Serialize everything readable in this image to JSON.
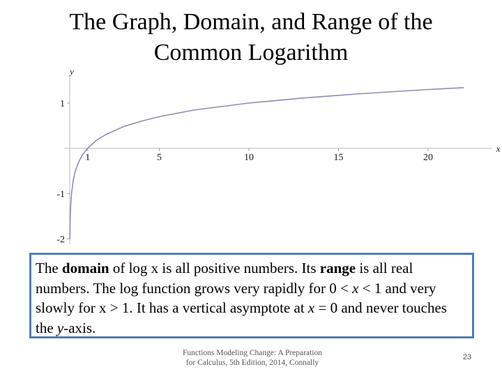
{
  "slide": {
    "title_line1": "The Graph, Domain, and Range of the",
    "title_line2": "Common Logarithm",
    "text": {
      "p1": "The ",
      "p2": "domain",
      "p3": " of log x is all positive numbers.  Its ",
      "p4": "range",
      "p5": " is all real numbers. The log function grows very rapidly for 0 < ",
      "p6": "x",
      "p7": " < 1 and very slowly for x > 1. It has a vertical asymptote at ",
      "p8": "x",
      "p9": " = 0 and never touches the ",
      "p10": "y",
      "p11": "-axis."
    },
    "footer_line1": "Functions Modeling Change:  A Preparation",
    "footer_line2": "for Calculus, 5th Edition, 2014, Connally",
    "page_number": "23"
  },
  "chart_data": {
    "type": "line",
    "function": "y = log10(x)",
    "xlabel": "x",
    "ylabel": "y",
    "xlim": [
      0,
      24
    ],
    "ylim": [
      -2.1,
      1.6
    ],
    "x_ticks": [
      {
        "value": 1,
        "label": "1"
      },
      {
        "value": 5,
        "label": "5"
      },
      {
        "value": 10,
        "label": "10"
      },
      {
        "value": 15,
        "label": "15"
      },
      {
        "value": 20,
        "label": "20"
      }
    ],
    "y_ticks": [
      {
        "value": 1,
        "label": "1"
      },
      {
        "value": -1,
        "label": "-1"
      },
      {
        "value": -2,
        "label": "-2"
      }
    ],
    "series": [
      {
        "color": "#8a8fb3",
        "x": [
          0.01,
          0.012,
          0.015,
          0.02,
          0.03,
          0.05,
          0.1,
          0.2,
          0.3,
          0.5,
          0.7,
          1,
          1.5,
          2,
          3,
          4,
          5,
          7,
          10,
          13,
          16,
          20,
          22
        ],
        "y": [
          -2,
          -1.92,
          -1.82,
          -1.7,
          -1.52,
          -1.3,
          -1,
          -0.7,
          -0.52,
          -0.3,
          -0.15,
          0,
          0.18,
          0.3,
          0.48,
          0.6,
          0.7,
          0.85,
          1,
          1.11,
          1.2,
          1.3,
          1.34
        ]
      }
    ]
  }
}
